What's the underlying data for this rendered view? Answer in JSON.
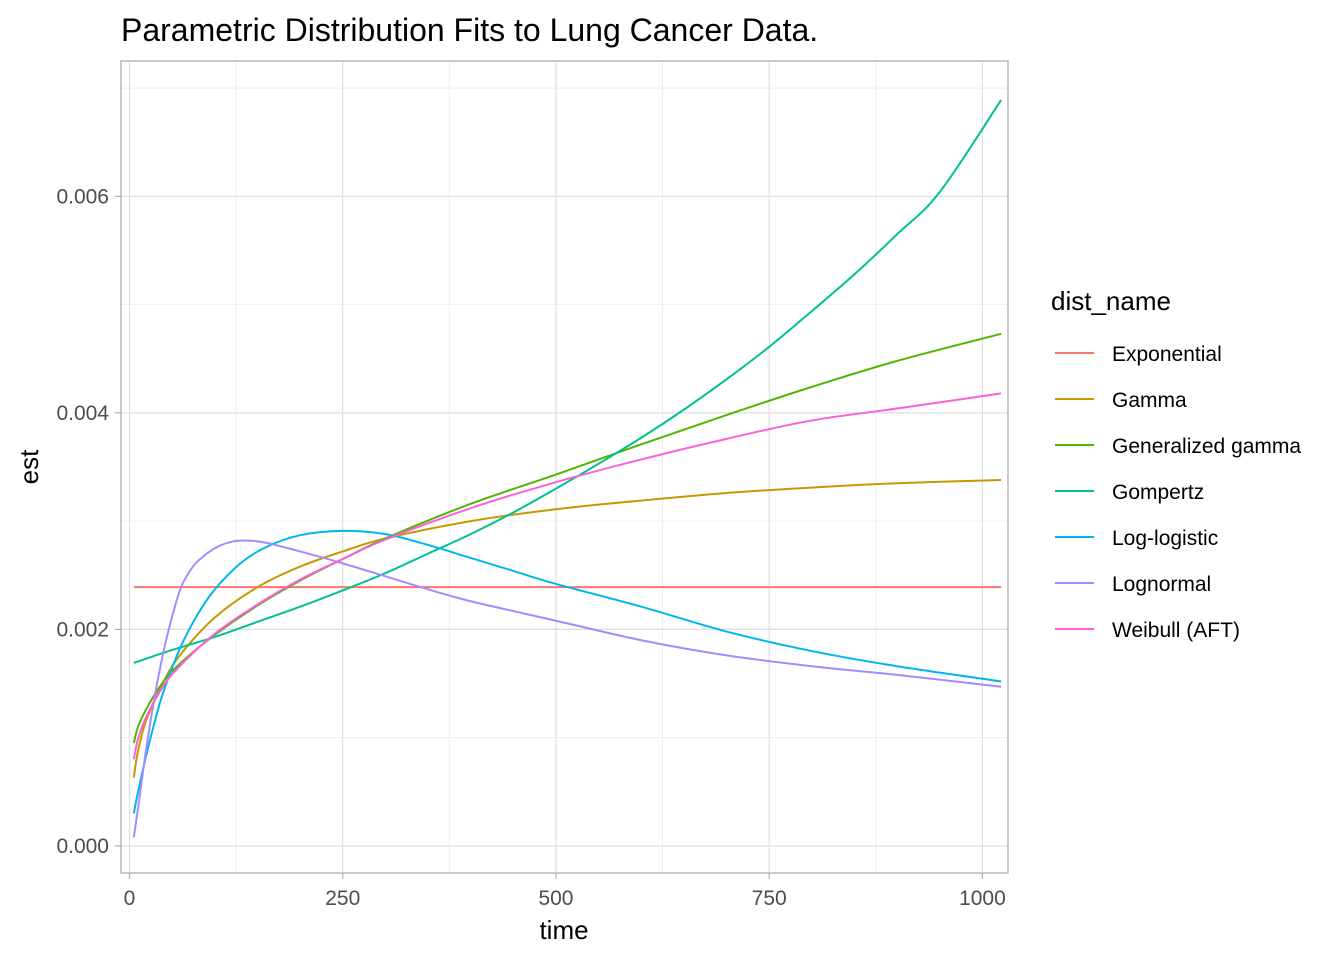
{
  "chart_data": {
    "type": "line",
    "title": "Parametric Distribution Fits to Lung Cancer Data.",
    "xlabel": "time",
    "ylabel": "est",
    "xlim": [
      -10,
      1030
    ],
    "ylim": [
      -0.00025,
      0.00725
    ],
    "x_ticks": [
      0,
      250,
      500,
      750,
      1000
    ],
    "x_tick_labels": [
      "0",
      "250",
      "500",
      "750",
      "1000"
    ],
    "y_ticks": [
      0,
      0.002,
      0.004,
      0.006
    ],
    "y_tick_labels": [
      "0.000",
      "0.002",
      "0.004",
      "0.006"
    ],
    "grid": true,
    "legend_title": "dist_name",
    "legend_position": "right",
    "series": [
      {
        "name": "Exponential",
        "color": "#F8766D",
        "x": [
          5,
          1022
        ],
        "y": [
          0.00239,
          0.00239
        ]
      },
      {
        "name": "Gamma",
        "color": "#C49A00",
        "x": [
          5,
          10,
          20,
          40,
          60,
          100,
          150,
          200,
          250,
          300,
          400,
          500,
          600,
          700,
          800,
          900,
          1022
        ],
        "y": [
          0.00063,
          0.00088,
          0.00117,
          0.00152,
          0.00177,
          0.00211,
          0.00239,
          0.00258,
          0.00272,
          0.00284,
          0.003,
          0.00311,
          0.00319,
          0.00326,
          0.00331,
          0.00335,
          0.00338
        ]
      },
      {
        "name": "Generalized gamma",
        "color": "#53B400",
        "x": [
          5,
          10,
          20,
          40,
          60,
          100,
          150,
          200,
          250,
          300,
          400,
          500,
          600,
          700,
          800,
          900,
          1022
        ],
        "y": [
          0.00095,
          0.0011,
          0.00127,
          0.00152,
          0.00169,
          0.00195,
          0.00222,
          0.00245,
          0.00265,
          0.00284,
          0.00316,
          0.00343,
          0.00371,
          0.00398,
          0.00424,
          0.00448,
          0.00473
        ]
      },
      {
        "name": "Gompertz",
        "color": "#00C094",
        "x": [
          5,
          50,
          100,
          150,
          200,
          250,
          300,
          350,
          400,
          450,
          500,
          550,
          600,
          650,
          700,
          750,
          800,
          850,
          900,
          950,
          1022
        ],
        "y": [
          0.00169,
          0.00181,
          0.00193,
          0.00207,
          0.00221,
          0.00236,
          0.00252,
          0.0027,
          0.00288,
          0.00308,
          0.0033,
          0.00353,
          0.00377,
          0.00403,
          0.00431,
          0.00461,
          0.00494,
          0.00528,
          0.00565,
          0.00604,
          0.00689
        ]
      },
      {
        "name": "Log-logistic",
        "color": "#00B6EB",
        "x": [
          5,
          10,
          20,
          30,
          40,
          60,
          80,
          100,
          130,
          160,
          200,
          250,
          300,
          350,
          400,
          450,
          500,
          600,
          700,
          800,
          900,
          1022
        ],
        "y": [
          0.0003,
          0.0005,
          0.00085,
          0.00116,
          0.00143,
          0.00184,
          0.00214,
          0.00237,
          0.00261,
          0.00276,
          0.00287,
          0.00291,
          0.00288,
          0.00278,
          0.00266,
          0.00254,
          0.00242,
          0.00221,
          0.00198,
          0.0018,
          0.00166,
          0.00152
        ]
      },
      {
        "name": "Lognormal",
        "color": "#A58AFF",
        "x": [
          5,
          10,
          20,
          30,
          40,
          50,
          60,
          70,
          80,
          100,
          120,
          140,
          160,
          200,
          250,
          300,
          350,
          400,
          500,
          600,
          700,
          800,
          900,
          1022
        ],
        "y": [
          8e-05,
          0.00035,
          0.00092,
          0.0014,
          0.0018,
          0.00212,
          0.00238,
          0.00253,
          0.00263,
          0.00275,
          0.00281,
          0.00282,
          0.0028,
          0.00272,
          0.00261,
          0.00249,
          0.00237,
          0.00226,
          0.00208,
          0.0019,
          0.00176,
          0.00166,
          0.00158,
          0.00147
        ]
      },
      {
        "name": "Weibull (AFT)",
        "color": "#FB61D7",
        "x": [
          5,
          10,
          20,
          40,
          60,
          100,
          150,
          200,
          250,
          300,
          400,
          500,
          600,
          700,
          800,
          900,
          1022
        ],
        "y": [
          0.0008,
          0.00099,
          0.0012,
          0.00148,
          0.00167,
          0.00196,
          0.00223,
          0.00246,
          0.00265,
          0.00283,
          0.00312,
          0.00336,
          0.00357,
          0.00376,
          0.00393,
          0.00404,
          0.00418
        ]
      }
    ]
  }
}
